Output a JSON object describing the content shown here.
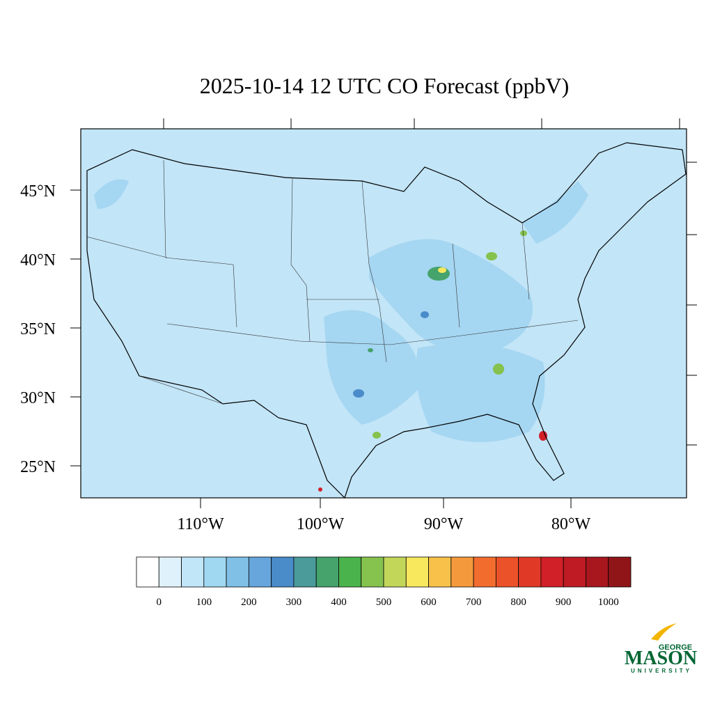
{
  "title": "2025-10-14 12 UTC CO Forecast (ppbV)",
  "lat_labels": [
    "45°N",
    "40°N",
    "35°N",
    "30°N",
    "25°N"
  ],
  "lon_labels": [
    "110°W",
    "100°W",
    "90°W",
    "80°W"
  ],
  "colorbar": {
    "colors": [
      "#ffffff",
      "#dff1fa",
      "#c0e6f8",
      "#a0d8f1",
      "#80bfe6",
      "#66a6dc",
      "#4a8bc9",
      "#4b9b9b",
      "#45a36b",
      "#4bb34b",
      "#85c24e",
      "#c2d65a",
      "#f7e85e",
      "#f7c14a",
      "#f49a3d",
      "#f26c2e",
      "#ec5229",
      "#e03a27",
      "#d22029",
      "#be1b25",
      "#a8171e",
      "#8f1519"
    ],
    "labels": [
      "0",
      "100",
      "200",
      "300",
      "400",
      "500",
      "600",
      "700",
      "800",
      "900",
      "1000"
    ]
  },
  "logo": {
    "top": "GEORGE",
    "name": "MASON",
    "bottom": "UNIVERSITY"
  }
}
